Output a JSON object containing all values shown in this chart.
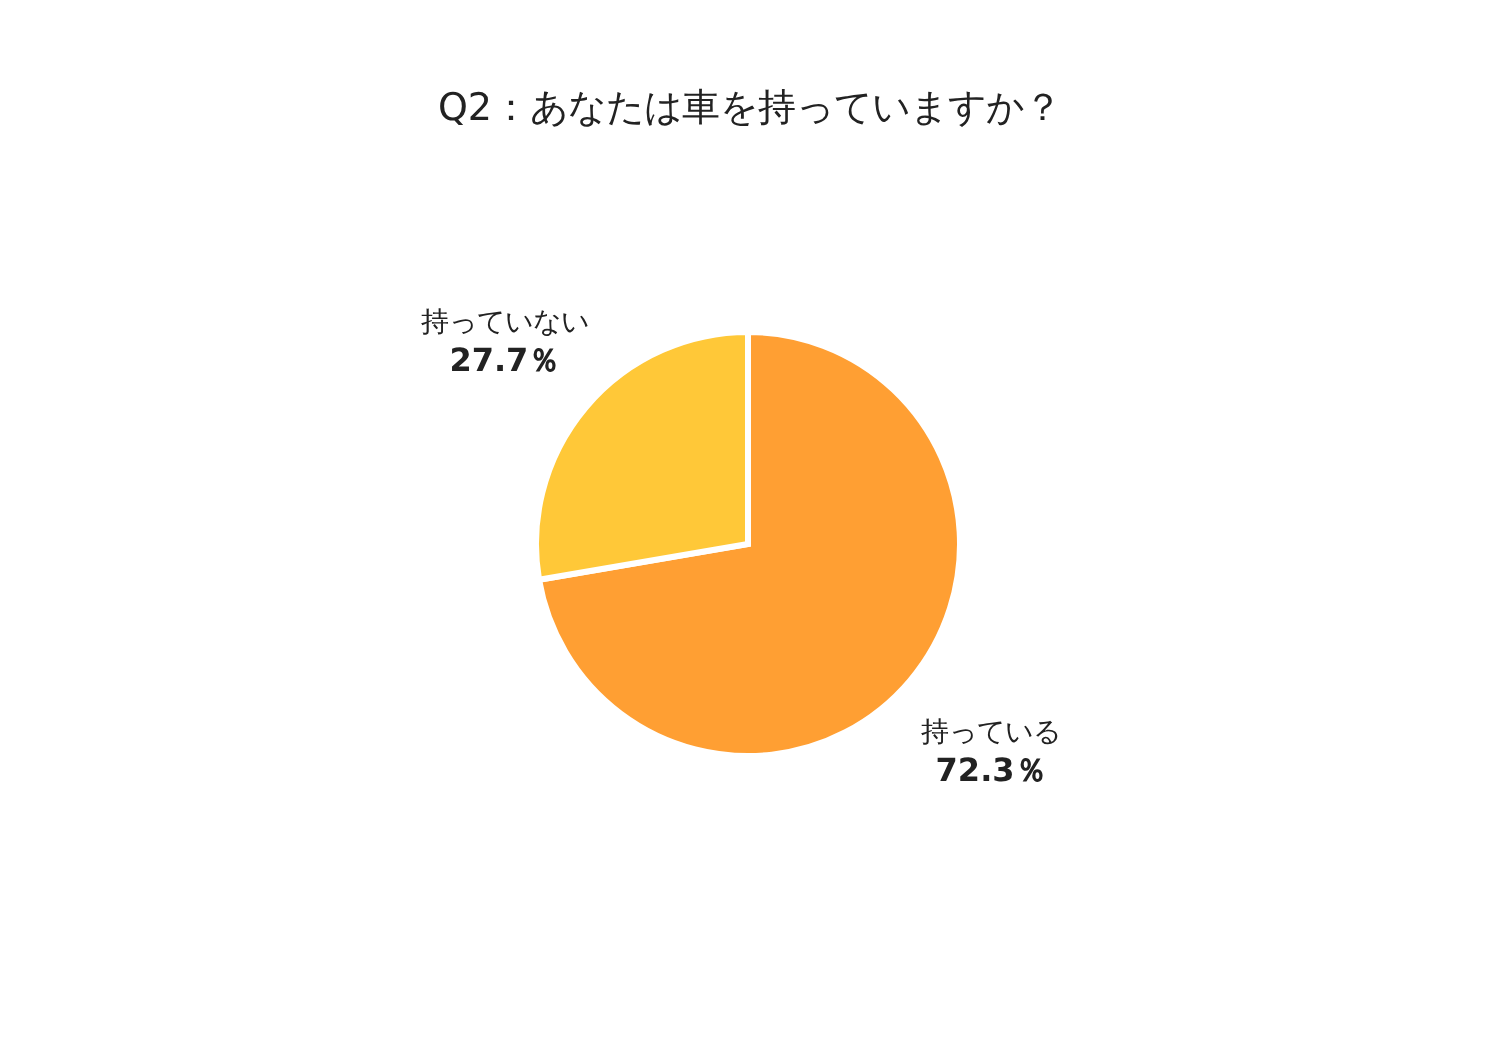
{
  "chart_data": {
    "type": "pie",
    "title": "Q2：あなたは車を持っていますか？",
    "categories": [
      "持っている",
      "持っていない"
    ],
    "values": [
      72.3,
      27.7
    ],
    "value_labels": [
      "72.3％",
      "27.7％"
    ],
    "colors": [
      "#ff9f33",
      "#ffc838"
    ]
  }
}
